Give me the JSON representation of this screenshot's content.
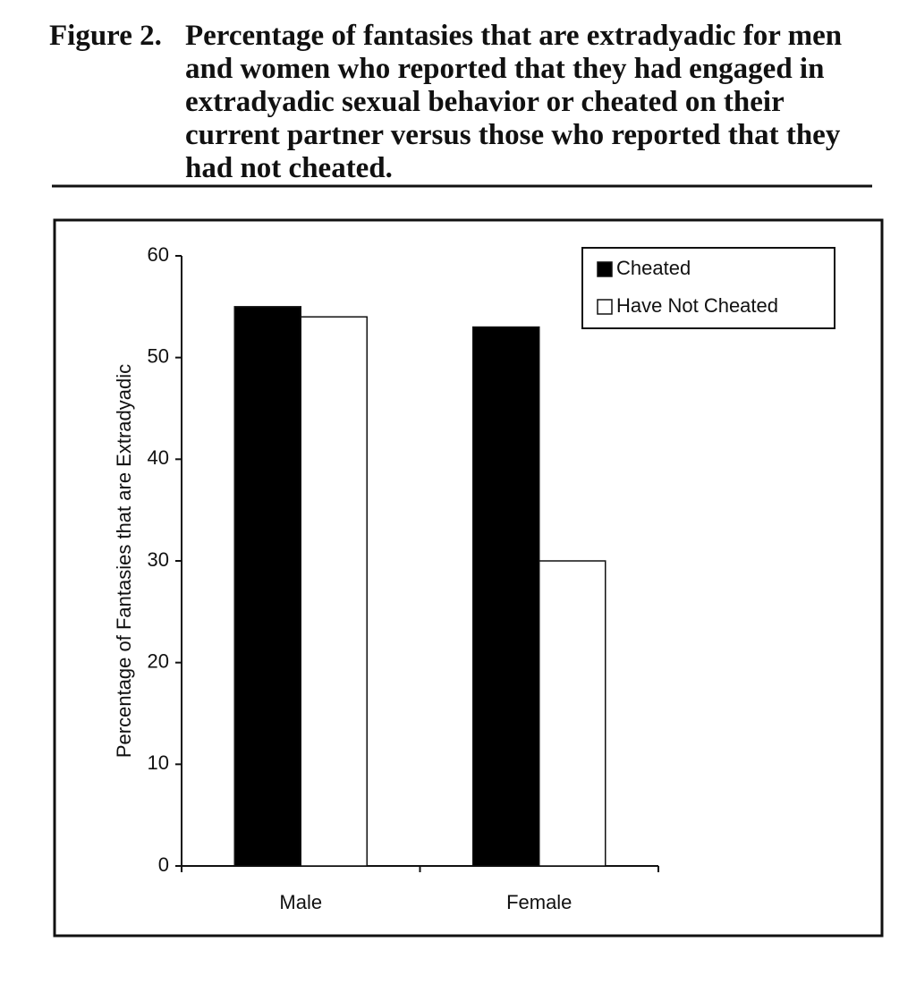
{
  "chart_data": {
    "type": "bar",
    "figure_label": "Figure 2.",
    "title": "Percentage of fantasies that are extradyadic for men and women who reported that they had engaged in extradyadic sexual behavior or cheated on their current partner versus those who reported that they had not cheated.",
    "y_label": "Percentage of Fantasies that are Extradyadic",
    "categories": [
      "Male",
      "Female"
    ],
    "series": [
      {
        "name": "Cheated",
        "color": "#000000",
        "values": [
          55,
          53
        ]
      },
      {
        "name": "Have Not Cheated",
        "color": "#ffffff",
        "values": [
          54,
          30
        ]
      }
    ],
    "ylim": [
      0,
      60
    ],
    "yticks": [
      0,
      10,
      20,
      30,
      40,
      50,
      60
    ],
    "grid": false,
    "legend": "top-right"
  }
}
